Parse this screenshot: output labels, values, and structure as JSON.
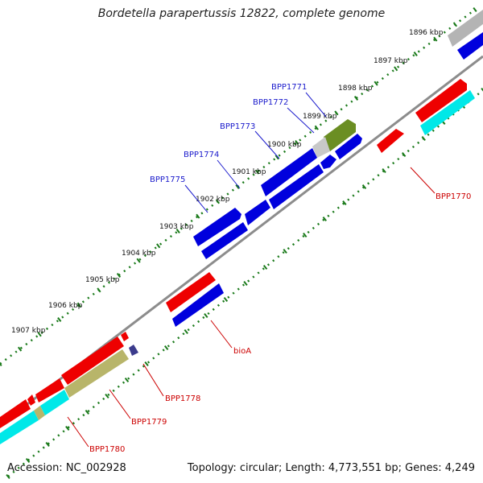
{
  "title": "Bordetella parapertussis 12822, complete genome",
  "footer": {
    "accession": "Accession: NC_002928",
    "summary": "Topology: circular; Length: 4,773,551 bp; Genes: 4,249"
  },
  "ruler_labels": [
    "1896 kbp",
    "1897 kbp",
    "1898 kbp",
    "1899 kbp",
    "1900 kbp",
    "1901 kbp",
    "1902 kbp",
    "1903 kbp",
    "1904 kbp",
    "1905 kbp",
    "1906 kbp",
    "1907 kbp"
  ],
  "gene_labels": {
    "upper": [
      "BPP1771",
      "BPP1772",
      "BPP1773",
      "BPP1774",
      "BPP1775"
    ],
    "lower": [
      "BPP1770",
      "bioA",
      "BPP1778",
      "BPP1779",
      "BPP1780"
    ]
  },
  "colors": {
    "backbone": "#8c8c8c",
    "ruler_dots": "#1a7a1a",
    "forward_genes": "#0000dd",
    "reverse_genes": "#ee0000",
    "rna": "#00e8e8",
    "olive": "#6b8e23",
    "khaki": "#b8b56a",
    "grey": "#b4b4b4",
    "navy": "#3b3b8c",
    "blue_label": "#1a1acc",
    "red_label": "#cc0000"
  }
}
